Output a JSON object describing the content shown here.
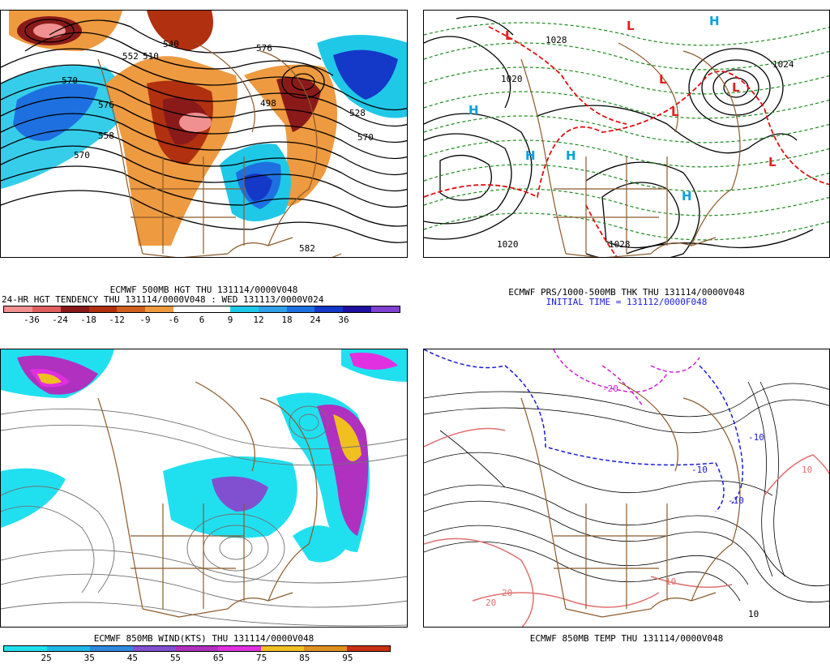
{
  "panels": {
    "hgt500": {
      "title": "ECMWF 500MB HGT THU 131114/0000V048",
      "subtitle": "24-HR HGT TENDENCY THU 131114/0000V048 : WED 131113/0000V024",
      "contour_labels": [
        "576",
        "570",
        "570",
        "570",
        "576",
        "558",
        "582",
        "498",
        "510",
        "528",
        "540",
        "552"
      ],
      "colorbar": {
        "colors": [
          "#f09090",
          "#e06060",
          "#8a1a1a",
          "#b03010",
          "#d06020",
          "#ee9a40",
          "#ffffff",
          "#ffffff",
          "#20c8e8",
          "#30a0e8",
          "#1e70e0",
          "#1438c8",
          "#2010a0",
          "#8040d0"
        ],
        "ticks": [
          "-36",
          "-24",
          "-18",
          "-12",
          "-9",
          "-6",
          "6",
          "9",
          "12",
          "18",
          "24",
          "36"
        ]
      }
    },
    "prs1000": {
      "title": "ECMWF PRS/1000-500MB THK THU 131114/0000V048",
      "subtitle": "INITIAL TIME = 131112/0000F048",
      "contour_labels": [
        "1020",
        "1020",
        "1028",
        "1024",
        "1028"
      ],
      "centers": [
        {
          "letter": "H",
          "color": "#00a0e0"
        },
        {
          "letter": "H",
          "color": "#00a0e0"
        },
        {
          "letter": "H",
          "color": "#00a0e0"
        },
        {
          "letter": "H",
          "color": "#00a0e0"
        },
        {
          "letter": "H",
          "color": "#00a0e0"
        },
        {
          "letter": "L",
          "color": "#e02020"
        },
        {
          "letter": "L",
          "color": "#e02020"
        },
        {
          "letter": "L",
          "color": "#e02020"
        },
        {
          "letter": "L",
          "color": "#e02020"
        },
        {
          "letter": "L",
          "color": "#e02020"
        },
        {
          "letter": "L",
          "color": "#e02020"
        }
      ]
    },
    "wind850": {
      "title": "ECMWF 850MB WIND(KTS) THU 131114/0000V048",
      "colorbar": {
        "colors": [
          "#20e0f0",
          "#20b8e8",
          "#3088e0",
          "#8050d0",
          "#b030c0",
          "#e030e0",
          "#f0c020",
          "#e09020",
          "#c83010"
        ],
        "ticks": [
          "25",
          "35",
          "45",
          "55",
          "65",
          "75",
          "85",
          "95"
        ]
      }
    },
    "temp850": {
      "title": "ECMWF 850MB TEMP THU 131114/0000V048",
      "contour_labels": [
        "-10",
        "-10",
        "10",
        "20",
        "20",
        "10",
        "10",
        "-10",
        "-20"
      ]
    }
  }
}
